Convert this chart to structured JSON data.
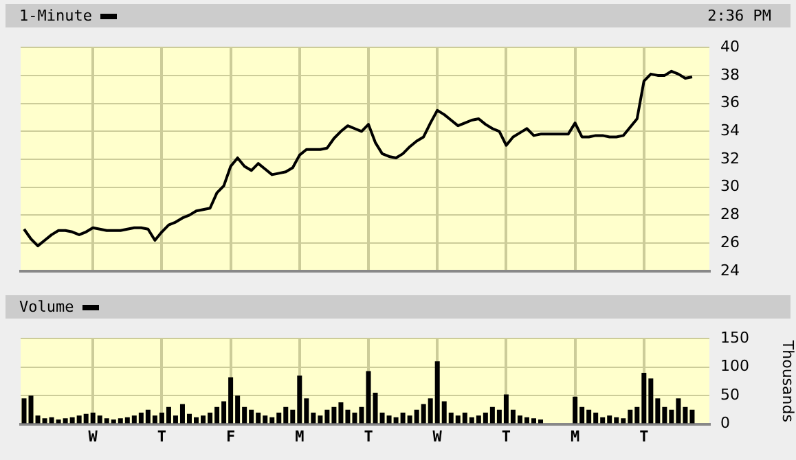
{
  "chart_data": [
    {
      "type": "line",
      "annotations": [
        "2:36 PM"
      ],
      "legend": "top left",
      "grid": true,
      "tick_labels": "y",
      "marker": "none",
      "line_style": "solid",
      "categories": [
        null,
        null,
        null,
        null,
        null,
        null,
        null,
        null,
        null,
        null,
        null,
        null,
        null,
        null,
        null,
        null,
        null,
        null,
        null,
        null,
        null,
        null,
        null,
        null,
        null,
        null,
        null,
        null,
        null,
        null,
        null,
        null,
        null,
        null,
        null,
        null,
        null,
        null,
        null,
        null,
        null,
        null,
        null,
        null,
        null,
        null,
        null,
        null,
        null,
        null,
        null,
        null,
        null,
        null,
        null,
        null,
        null,
        null,
        null,
        null,
        null,
        null,
        null,
        null,
        null,
        null,
        null,
        null,
        null,
        null,
        null,
        null,
        null,
        null,
        null,
        null,
        null,
        null,
        null,
        null,
        null,
        null,
        null,
        null,
        null,
        null,
        null,
        null,
        null,
        null,
        null,
        null,
        null,
        null,
        null,
        null,
        null,
        null,
        null,
        null
      ],
      "ylim": [
        24,
        40
      ],
      "yticks": [
        24,
        26,
        28,
        30,
        32,
        34,
        36,
        38,
        40
      ],
      "series": [
        {
          "name": "1-Minute",
          "color": "#000000",
          "values": [
            27.0,
            26.3,
            25.8,
            26.2,
            26.6,
            26.9,
            26.9,
            26.8,
            26.6,
            26.8,
            27.1,
            27.0,
            26.9,
            26.9,
            26.9,
            27.0,
            27.1,
            27.1,
            27.0,
            26.2,
            26.8,
            27.3,
            27.5,
            27.8,
            28.0,
            28.3,
            28.4,
            28.5,
            29.6,
            30.1,
            31.5,
            32.1,
            31.5,
            31.2,
            31.7,
            31.3,
            30.9,
            31.0,
            31.1,
            31.4,
            32.3,
            32.7,
            32.7,
            32.7,
            32.8,
            33.5,
            34.0,
            34.4,
            34.2,
            34.0,
            34.5,
            33.2,
            32.4,
            32.2,
            32.1,
            32.4,
            32.9,
            33.3,
            33.6,
            34.6,
            35.5,
            35.2,
            34.8,
            34.4,
            34.6,
            34.8,
            34.9,
            34.5,
            34.2,
            34.0,
            33.0,
            33.6,
            33.9,
            34.2,
            33.7,
            33.8,
            33.8,
            33.8,
            33.8,
            33.8,
            34.6,
            33.6,
            33.6,
            33.7,
            33.7,
            33.6,
            33.6,
            33.7,
            34.3,
            34.9,
            37.6,
            38.1,
            38.0,
            38.0,
            38.3,
            38.1,
            37.8,
            37.9,
            null,
            null
          ]
        }
      ]
    },
    {
      "type": "bar",
      "legend": "top left",
      "grid": true,
      "ylabel": "Thousands",
      "categories": [
        null,
        null,
        null,
        null,
        null,
        null,
        null,
        null,
        null,
        null,
        "W",
        null,
        null,
        null,
        null,
        null,
        null,
        null,
        null,
        null,
        "T",
        null,
        null,
        null,
        null,
        null,
        null,
        null,
        null,
        null,
        "F",
        null,
        null,
        null,
        null,
        null,
        null,
        null,
        null,
        null,
        "M",
        null,
        null,
        null,
        null,
        null,
        null,
        null,
        null,
        null,
        "T",
        null,
        null,
        null,
        null,
        null,
        null,
        null,
        null,
        null,
        "W",
        null,
        null,
        null,
        null,
        null,
        null,
        null,
        null,
        null,
        "T",
        null,
        null,
        null,
        null,
        null,
        null,
        null,
        null,
        null,
        "M",
        null,
        null,
        null,
        null,
        null,
        null,
        null,
        null,
        null,
        "T",
        null,
        null,
        null,
        null,
        null,
        null,
        null,
        null,
        null
      ],
      "ylim": [
        0,
        150
      ],
      "yticks": [
        0,
        50,
        100,
        150
      ],
      "series": [
        {
          "name": "Volume",
          "color": "#000000",
          "values": [
            45,
            50,
            15,
            10,
            12,
            8,
            10,
            12,
            15,
            18,
            20,
            15,
            10,
            8,
            10,
            12,
            15,
            20,
            25,
            15,
            20,
            30,
            15,
            35,
            18,
            12,
            15,
            20,
            30,
            40,
            82,
            50,
            30,
            25,
            20,
            15,
            12,
            20,
            30,
            25,
            85,
            45,
            20,
            15,
            25,
            30,
            38,
            25,
            20,
            30,
            93,
            55,
            20,
            15,
            12,
            20,
            15,
            25,
            35,
            45,
            110,
            40,
            20,
            15,
            20,
            12,
            15,
            20,
            30,
            25,
            52,
            25,
            15,
            12,
            10,
            8,
            0,
            0,
            0,
            0,
            48,
            30,
            25,
            20,
            12,
            15,
            12,
            10,
            25,
            30,
            90,
            80,
            45,
            30,
            25,
            45,
            30,
            25,
            null,
            null
          ]
        }
      ]
    }
  ]
}
